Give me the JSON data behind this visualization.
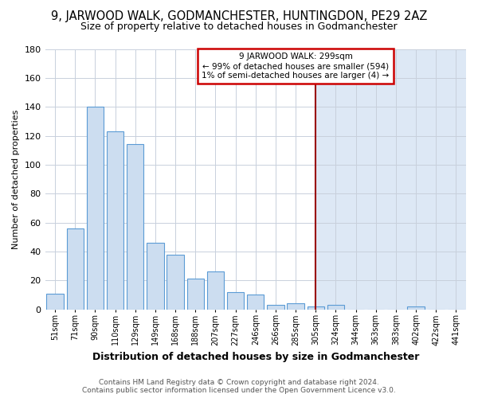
{
  "title": "9, JARWOOD WALK, GODMANCHESTER, HUNTINGDON, PE29 2AZ",
  "subtitle": "Size of property relative to detached houses in Godmanchester",
  "xlabel": "Distribution of detached houses by size in Godmanchester",
  "ylabel": "Number of detached properties",
  "categories": [
    "51sqm",
    "71sqm",
    "90sqm",
    "110sqm",
    "129sqm",
    "149sqm",
    "168sqm",
    "188sqm",
    "207sqm",
    "227sqm",
    "246sqm",
    "266sqm",
    "285sqm",
    "305sqm",
    "324sqm",
    "344sqm",
    "363sqm",
    "383sqm",
    "402sqm",
    "422sqm",
    "441sqm"
  ],
  "values": [
    11,
    56,
    140,
    123,
    114,
    46,
    38,
    21,
    26,
    12,
    10,
    3,
    4,
    2,
    3,
    0,
    0,
    0,
    2,
    0,
    0
  ],
  "bar_color": "#ccddf0",
  "bar_edge_color": "#5b9bd5",
  "plot_bg_color": "#ffffff",
  "right_bg_color": "#dde8f5",
  "fig_bg_color": "#ffffff",
  "grid_color": "#c8d0dc",
  "vline_x": 13.0,
  "vline_color": "#990000",
  "annotation_line1": "9 JARWOOD WALK: 299sqm",
  "annotation_line2": "← 99% of detached houses are smaller (594)",
  "annotation_line3": "1% of semi-detached houses are larger (4) →",
  "annotation_box_color": "#ffffff",
  "annotation_border_color": "#cc0000",
  "ylim": [
    0,
    180
  ],
  "yticks": [
    0,
    20,
    40,
    60,
    80,
    100,
    120,
    140,
    160,
    180
  ],
  "title_fontsize": 10.5,
  "subtitle_fontsize": 9,
  "xlabel_fontsize": 9,
  "ylabel_fontsize": 8,
  "tick_fontsize": 8,
  "xtick_fontsize": 7,
  "footer": "Contains HM Land Registry data © Crown copyright and database right 2024.\nContains public sector information licensed under the Open Government Licence v3.0.",
  "footer_fontsize": 6.5,
  "footer_color": "#555555"
}
